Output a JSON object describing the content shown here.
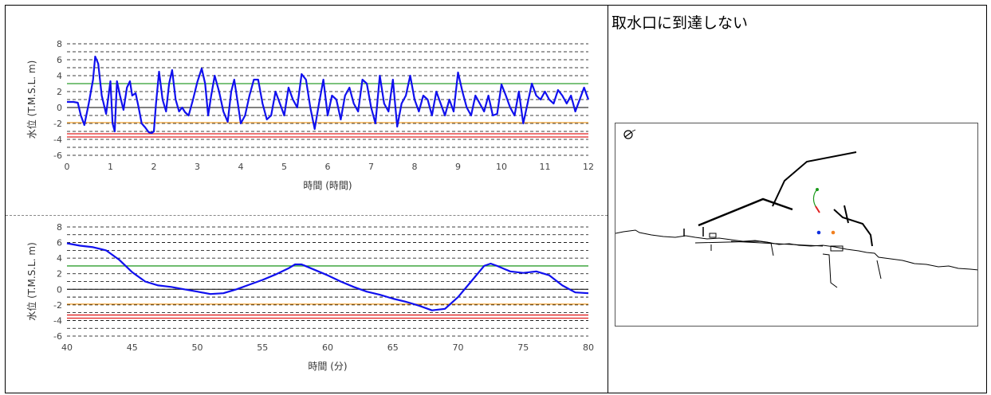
{
  "chart_data": [
    {
      "type": "line",
      "xlabel": "時間 (時間)",
      "ylabel": "水位 (T.M.S.L. m)",
      "xlim": [
        0,
        12
      ],
      "ylim": [
        -6,
        8
      ],
      "xticks": [
        0,
        1,
        2,
        3,
        4,
        5,
        6,
        7,
        8,
        9,
        10,
        11,
        12
      ],
      "yticks": [
        -6,
        -4,
        -2,
        0,
        2,
        4,
        6,
        8
      ],
      "grid": "dashed",
      "reference_lines": [
        {
          "y": 3.0,
          "color": "#2e9d2e"
        },
        {
          "y": -1.9,
          "color": "#f0a030"
        },
        {
          "y": -3.3,
          "color": "#e02020"
        },
        {
          "y": -3.7,
          "color": "#e02020"
        }
      ],
      "series": [
        {
          "color": "#1010ee",
          "x": [
            0,
            0.15,
            0.25,
            0.32,
            0.4,
            0.5,
            0.6,
            0.65,
            0.72,
            0.8,
            0.9,
            1.0,
            1.05,
            1.1,
            1.15,
            1.22,
            1.3,
            1.38,
            1.45,
            1.5,
            1.58,
            1.65,
            1.72,
            1.8,
            1.88,
            1.95,
            2.0,
            2.05,
            2.12,
            2.2,
            2.28,
            2.35,
            2.42,
            2.5,
            2.58,
            2.65,
            2.72,
            2.8,
            2.9,
            3.0,
            3.1,
            3.18,
            3.25,
            3.32,
            3.4,
            3.5,
            3.6,
            3.7,
            3.78,
            3.85,
            3.92,
            4.0,
            4.1,
            4.2,
            4.3,
            4.4,
            4.5,
            4.6,
            4.7,
            4.8,
            4.9,
            5.0,
            5.1,
            5.2,
            5.3,
            5.4,
            5.5,
            5.6,
            5.7,
            5.8,
            5.9,
            6.0,
            6.1,
            6.2,
            6.3,
            6.4,
            6.5,
            6.6,
            6.7,
            6.8,
            6.9,
            7.0,
            7.1,
            7.2,
            7.3,
            7.4,
            7.5,
            7.6,
            7.7,
            7.8,
            7.9,
            8.0,
            8.1,
            8.2,
            8.3,
            8.4,
            8.5,
            8.6,
            8.7,
            8.8,
            8.9,
            9.0,
            9.1,
            9.2,
            9.3,
            9.4,
            9.5,
            9.6,
            9.7,
            9.8,
            9.9,
            10.0,
            10.1,
            10.2,
            10.3,
            10.4,
            10.5,
            10.6,
            10.7,
            10.8,
            10.9,
            11.0,
            11.1,
            11.2,
            11.3,
            11.4,
            11.5,
            11.6,
            11.7,
            11.8,
            11.9,
            12.0
          ],
          "y": [
            0.7,
            0.7,
            0.6,
            -1.0,
            -2.2,
            0.5,
            3.5,
            6.4,
            5.5,
            1.5,
            -0.8,
            3.3,
            -2.0,
            -3.0,
            3.3,
            1.5,
            -0.3,
            2.5,
            3.3,
            1.5,
            1.8,
            0.0,
            -2.0,
            -2.5,
            -3.1,
            -3.2,
            -3.0,
            0.5,
            4.5,
            1.0,
            -0.5,
            3.0,
            4.7,
            1.0,
            -0.5,
            0.0,
            -0.6,
            -1.0,
            1.0,
            3.2,
            4.9,
            3.0,
            -1.0,
            1.5,
            4.0,
            2.0,
            -0.5,
            -1.8,
            2.0,
            3.5,
            1.0,
            -2.0,
            -1.0,
            1.5,
            3.5,
            3.5,
            0.5,
            -1.5,
            -1.0,
            2.0,
            0.5,
            -1.0,
            2.5,
            1.0,
            0.0,
            4.2,
            3.5,
            0.0,
            -2.7,
            0.5,
            3.5,
            -1.0,
            1.5,
            1.0,
            -1.5,
            1.5,
            2.5,
            0.5,
            -0.5,
            3.5,
            3.0,
            0.0,
            -2.0,
            4.0,
            0.5,
            -0.5,
            3.5,
            -2.4,
            0.5,
            1.5,
            4.0,
            1.0,
            -0.5,
            1.5,
            1.0,
            -1.0,
            2.0,
            0.5,
            -1.0,
            1.0,
            -0.5,
            4.4,
            2.0,
            0.0,
            -1.0,
            1.5,
            0.5,
            -0.5,
            1.5,
            -1.0,
            -0.8,
            2.9,
            1.5,
            0.0,
            -1.0,
            2.0,
            -2.0,
            0.5,
            3.0,
            1.5,
            1.0,
            2.0,
            1.0,
            0.5,
            2.2,
            1.5,
            0.5,
            1.5,
            -0.5,
            1.0,
            2.5,
            1.0
          ]
        }
      ]
    },
    {
      "type": "line",
      "xlabel": "時間 (分)",
      "ylabel": "水位 (T.M.S.L. m)",
      "xlim": [
        40,
        80
      ],
      "ylim": [
        -6,
        8
      ],
      "xticks": [
        40,
        45,
        50,
        55,
        60,
        65,
        70,
        75,
        80
      ],
      "yticks": [
        -6,
        -4,
        -2,
        0,
        2,
        4,
        6,
        8
      ],
      "grid": "dashed",
      "reference_lines": [
        {
          "y": 3.0,
          "color": "#2e9d2e"
        },
        {
          "y": -1.9,
          "color": "#f0a030"
        },
        {
          "y": -3.3,
          "color": "#e02020"
        },
        {
          "y": -3.7,
          "color": "#e02020"
        }
      ],
      "series": [
        {
          "color": "#1010ee",
          "x": [
            40,
            41,
            42,
            43,
            44,
            45,
            46,
            47,
            48,
            49,
            50,
            51,
            52,
            53,
            54,
            55,
            56,
            57,
            57.5,
            58,
            59,
            60,
            61,
            62,
            63,
            64,
            65,
            66,
            67,
            68,
            69,
            70,
            71,
            72,
            72.5,
            73,
            74,
            75,
            76,
            77,
            78,
            79,
            80
          ],
          "y": [
            5.9,
            5.6,
            5.4,
            5.0,
            3.8,
            2.2,
            1.0,
            0.5,
            0.3,
            0.0,
            -0.3,
            -0.6,
            -0.5,
            0.0,
            0.6,
            1.2,
            1.9,
            2.7,
            3.2,
            3.2,
            2.5,
            1.8,
            1.0,
            0.3,
            -0.3,
            -0.7,
            -1.2,
            -1.6,
            -2.1,
            -2.7,
            -2.5,
            -1.0,
            1.0,
            3.0,
            3.3,
            3.0,
            2.3,
            2.1,
            2.3,
            1.8,
            0.5,
            -0.4,
            -0.5
          ]
        }
      ]
    }
  ],
  "map": {
    "title": "取水口に到達しない",
    "compass_icon": "compass-icon",
    "markers": {
      "green_track": "#1a9a1a",
      "red": "#e02020",
      "blue": "#1030e0",
      "orange": "#f08020"
    }
  }
}
